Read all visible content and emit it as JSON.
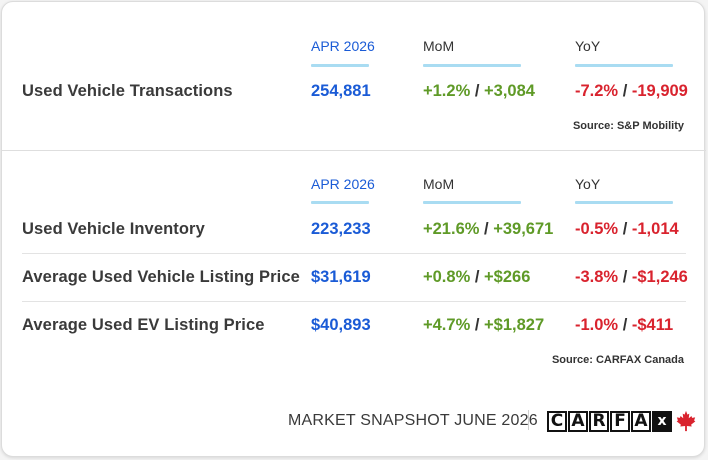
{
  "section1": {
    "headers": {
      "period": "APR 2026",
      "mom": "MoM",
      "yoy": "YoY"
    },
    "rows": [
      {
        "label": "Used Vehicle Transactions",
        "value": "254,881",
        "mom_pct": "+1.2%",
        "mom_abs": "+3,084",
        "yoy_pct": "-7.2%",
        "yoy_abs": "-19,909"
      }
    ],
    "source": "Source: S&P Mobility"
  },
  "section2": {
    "headers": {
      "period": "APR 2026",
      "mom": "MoM",
      "yoy": "YoY"
    },
    "rows": [
      {
        "label": "Used Vehicle Inventory",
        "value": "223,233",
        "mom_pct": "+21.6%",
        "mom_abs": "+39,671",
        "yoy_pct": "-0.5%",
        "yoy_abs": "-1,014"
      },
      {
        "label": "Average Used Vehicle Listing Price",
        "value": "$31,619",
        "mom_pct": "+0.8%",
        "mom_abs": "+$266",
        "yoy_pct": "-3.8%",
        "yoy_abs": "-$1,246"
      },
      {
        "label": "Average Used EV Listing Price",
        "value": "$40,893",
        "mom_pct": "+4.7%",
        "mom_abs": "+$1,827",
        "yoy_pct": "-1.0%",
        "yoy_abs": "-$411"
      }
    ],
    "source": "Source: CARFAX Canada"
  },
  "separator": "/",
  "footer": {
    "snapshot": "MARKET SNAPSHOT JUNE 2026",
    "logo_letters": [
      "C",
      "A",
      "R",
      "F",
      "A",
      "x"
    ]
  },
  "colors": {
    "period_blue": "#1a5bd6",
    "positive_green": "#5f9a27",
    "negative_red": "#d9232e",
    "underline": "#a9dcf2",
    "maple_red": "#d9232e"
  }
}
